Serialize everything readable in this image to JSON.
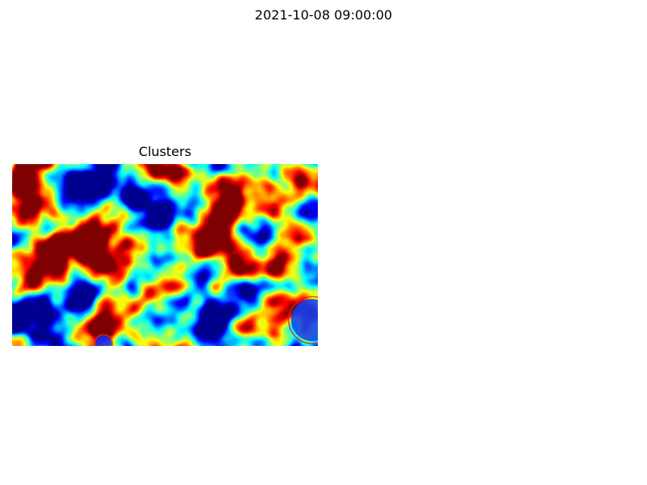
{
  "figure": {
    "suptitle": "2021-10-08 09:00:00"
  },
  "chart_data": {
    "type": "heatmap",
    "title": "Clusters",
    "xlabel": "",
    "ylabel": "",
    "colormap": "jet",
    "axes_visible": false,
    "grid": false,
    "cluster_color": "#d62728",
    "low_value_color": "#00008f",
    "high_value_color": "#800000"
  }
}
